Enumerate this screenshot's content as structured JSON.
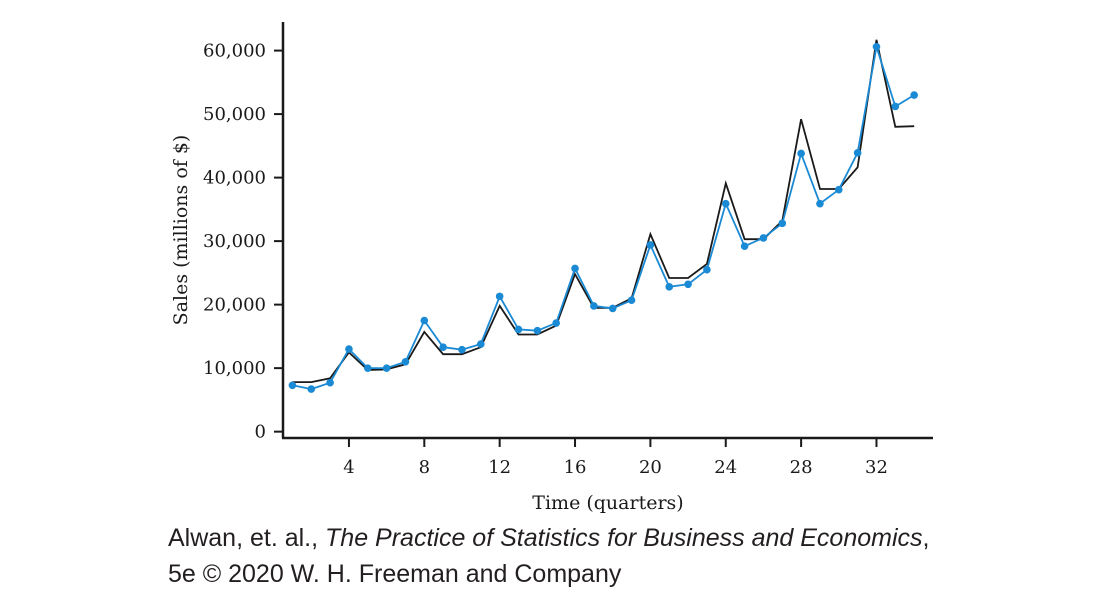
{
  "chart_data": {
    "type": "line",
    "xlabel": "Time (quarters)",
    "ylabel": "Sales (millions of $)",
    "xlim": [
      0.5,
      35
    ],
    "ylim": [
      -1000,
      64500
    ],
    "xticks": [
      4,
      8,
      12,
      16,
      20,
      24,
      28,
      32
    ],
    "xtick_labels": [
      "4",
      "8",
      "12",
      "16",
      "20",
      "24",
      "28",
      "32"
    ],
    "yticks": [
      0,
      10000,
      20000,
      30000,
      40000,
      50000,
      60000
    ],
    "ytick_labels": [
      "0",
      "10,000",
      "20,000",
      "30,000",
      "40,000",
      "50,000",
      "60,000"
    ],
    "grid": false,
    "series": [
      {
        "style": "line-with-markers",
        "color": "#1a8ad4",
        "x": [
          1,
          2,
          3,
          4,
          5,
          6,
          7,
          8,
          9,
          10,
          11,
          12,
          13,
          14,
          15,
          16,
          17,
          18,
          19,
          20,
          21,
          22,
          23,
          24,
          25,
          26,
          27,
          28,
          29,
          30,
          31,
          32,
          33,
          34
        ],
        "values": [
          7300,
          6700,
          7700,
          13000,
          10000,
          10000,
          11000,
          17500,
          13300,
          12900,
          13800,
          21300,
          16100,
          15900,
          17100,
          25700,
          19800,
          19400,
          20700,
          29400,
          22800,
          23200,
          25500,
          35900,
          29200,
          30500,
          32800,
          43800,
          35900,
          38100,
          43900,
          60600,
          51200,
          53000
        ]
      },
      {
        "style": "line",
        "color": "#1a1a1a",
        "x": [
          1,
          2,
          3,
          4,
          5,
          6,
          7,
          8,
          9,
          10,
          11,
          12,
          13,
          14,
          15,
          16,
          17,
          18,
          19,
          20,
          21,
          22,
          23,
          24,
          25,
          26,
          27,
          28,
          29,
          30,
          31,
          32,
          33,
          34
        ],
        "values": [
          7800,
          7800,
          8400,
          12500,
          9700,
          9800,
          10600,
          15700,
          12200,
          12200,
          13300,
          19800,
          15300,
          15300,
          16700,
          24800,
          19500,
          19500,
          21000,
          31100,
          24200,
          24200,
          26400,
          39100,
          30300,
          30300,
          33200,
          49200,
          38200,
          38200,
          41600,
          61700,
          48000,
          48100
        ]
      }
    ]
  },
  "caption": {
    "line1_prefix": "Alwan, et. al., ",
    "line1_book": "The Practice of Statistics for Business and Economics",
    "line1_suffix": ",",
    "line2": "5e © 2020 W. H. Freeman and Company"
  }
}
